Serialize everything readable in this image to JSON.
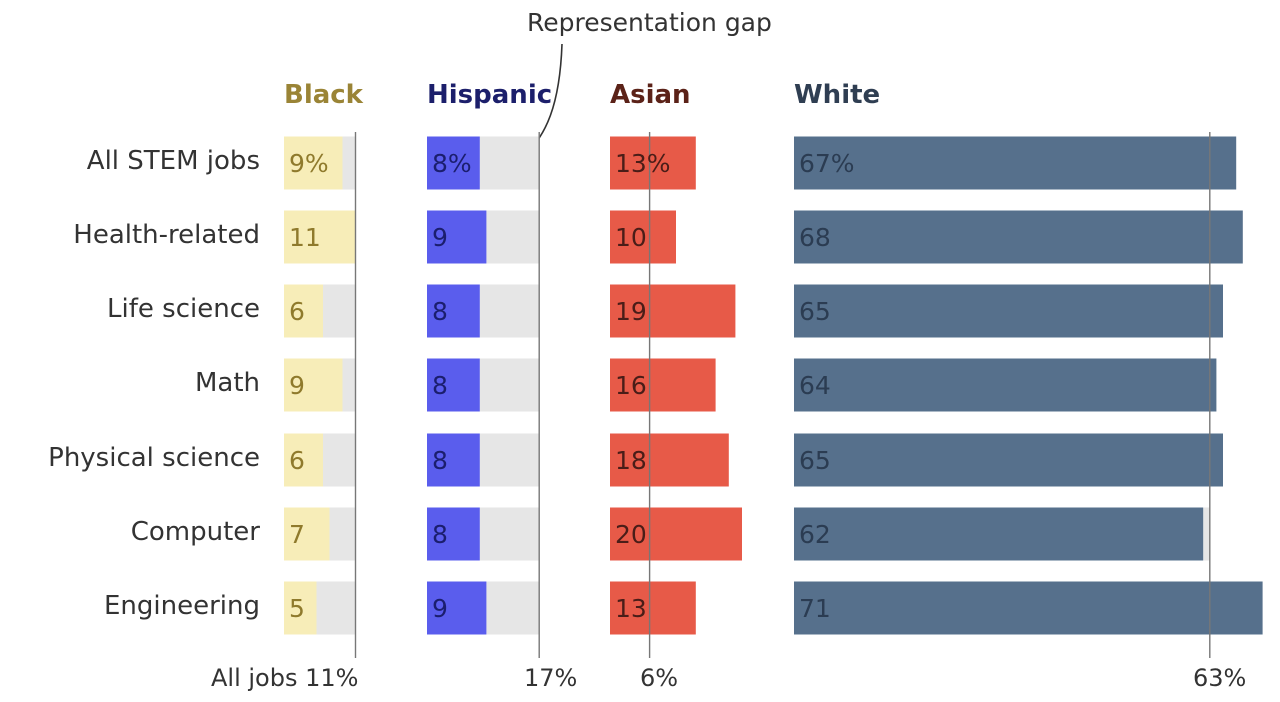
{
  "annotation": "Representation gap",
  "footer_labels": [
    "All jobs 11%",
    "17%",
    "6%",
    "63%"
  ],
  "colors": {
    "Black": {
      "bar": "#f7edb8",
      "text": "#8f7a2c",
      "title": "#9a8436"
    },
    "Hispanic": {
      "bar": "#5a5ded",
      "text": "#1b1e6e",
      "title": "#1c1f6b"
    },
    "Asian": {
      "bar": "#e75a48",
      "text": "#4a1d18",
      "title": "#5b2218"
    },
    "White": {
      "bar": "#56708c",
      "text": "#2b3c52",
      "title": "#2f3e52"
    },
    "gap": "#e6e6e6",
    "refline": "#777777"
  },
  "chart_data": {
    "type": "bar",
    "categories": [
      "All STEM jobs",
      "Health-related",
      "Life science",
      "Math",
      "Physical science",
      "Computer",
      "Engineering"
    ],
    "series": [
      {
        "name": "Black",
        "values": [
          9,
          11,
          6,
          9,
          6,
          7,
          5
        ],
        "labels": [
          "9%",
          "11",
          "6",
          "9",
          "6",
          "7",
          "5"
        ],
        "reference": 11
      },
      {
        "name": "Hispanic",
        "values": [
          8,
          9,
          8,
          8,
          8,
          8,
          9
        ],
        "labels": [
          "8%",
          "9",
          "8",
          "8",
          "8",
          "8",
          "9"
        ],
        "reference": 17
      },
      {
        "name": "Asian",
        "values": [
          13,
          10,
          19,
          16,
          18,
          20,
          13
        ],
        "labels": [
          "13%",
          "10",
          "19",
          "16",
          "18",
          "20",
          "13"
        ],
        "reference": 6
      },
      {
        "name": "White",
        "values": [
          67,
          68,
          65,
          64,
          65,
          62,
          71
        ],
        "labels": [
          "67%",
          "68",
          "65",
          "64",
          "65",
          "62",
          "71"
        ],
        "reference": 63
      }
    ],
    "unit": "%"
  }
}
